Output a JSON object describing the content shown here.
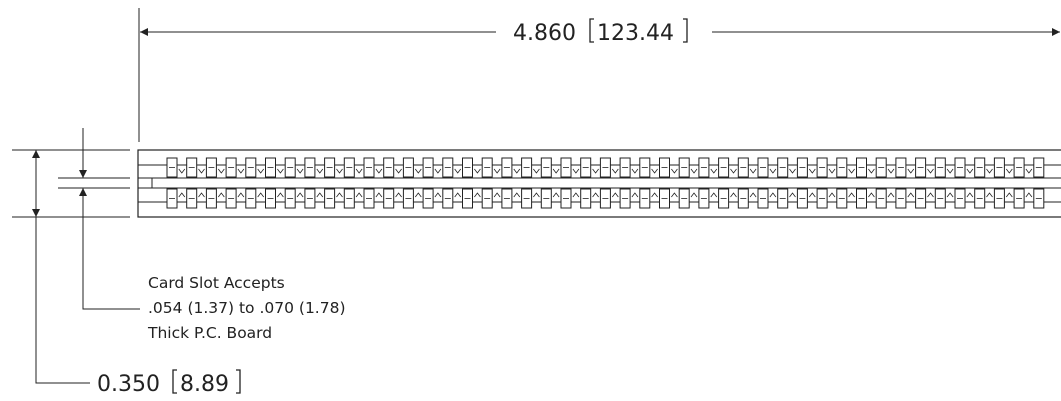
{
  "overall_length": {
    "inch": "4.860",
    "mm": "123.44"
  },
  "overall_height": {
    "inch": "0.350",
    "mm": "8.89"
  },
  "card_slot_note": {
    "line1": "Card Slot Accepts",
    "line2": ".054 (1.37) to .070 (1.78)",
    "line3": "Thick P.C. Board"
  },
  "connector": {
    "contact_columns": 45,
    "contact_rows": 2
  },
  "colors": {
    "line": "#222222",
    "background": "#ffffff"
  }
}
